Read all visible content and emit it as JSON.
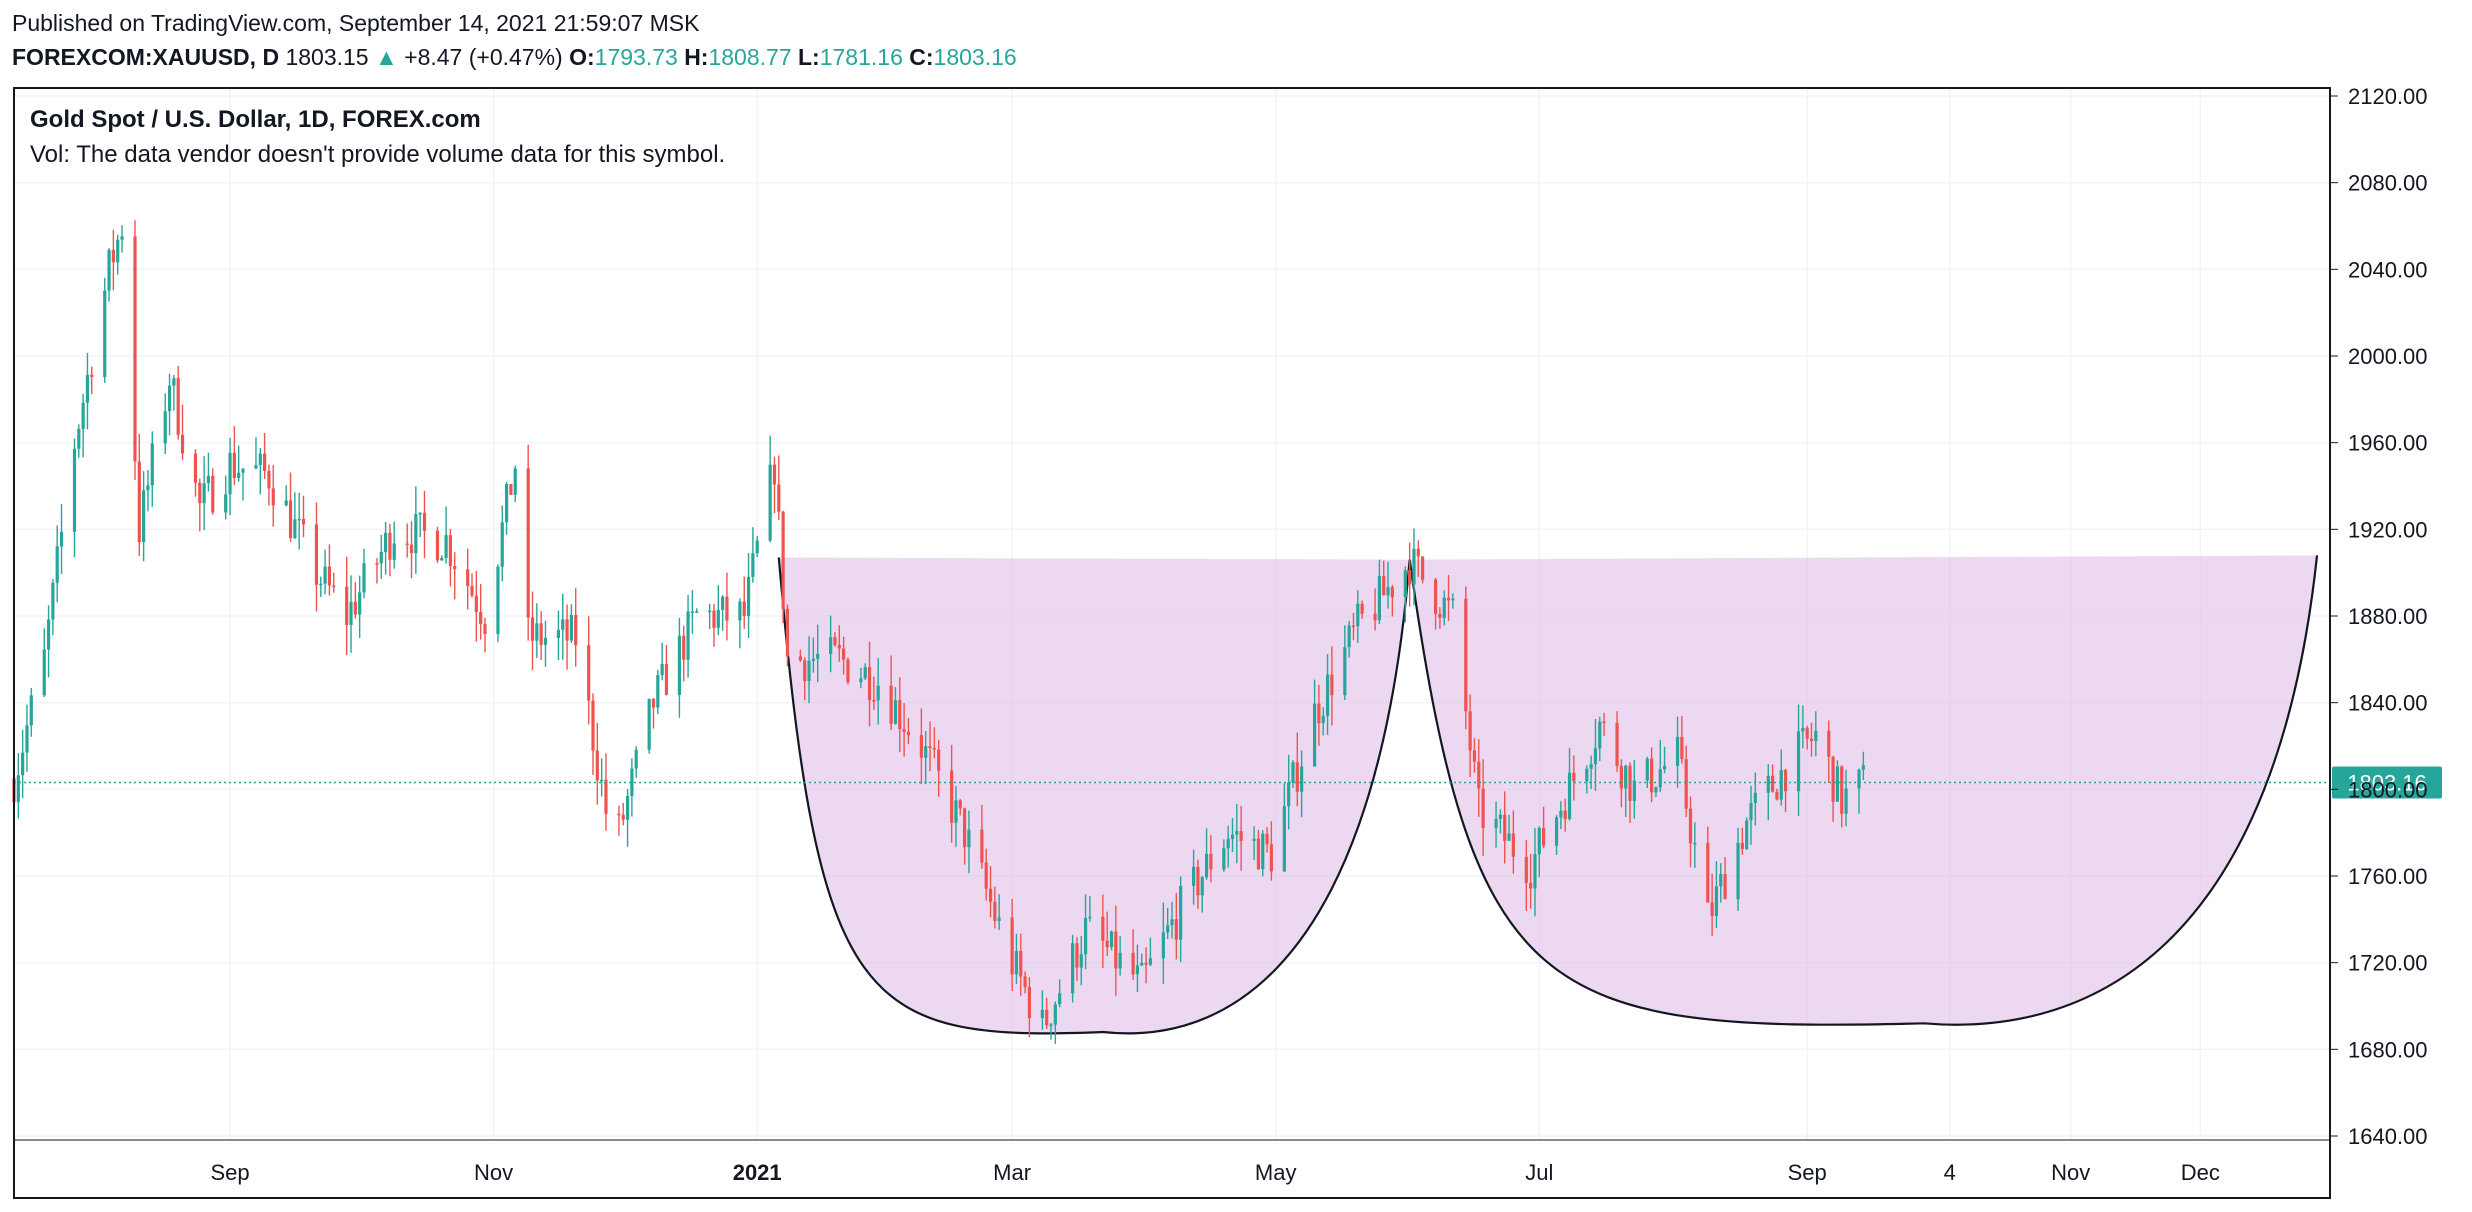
{
  "header": {
    "published": "Published on TradingView.com, September 14, 2021 21:59:07 MSK",
    "symbol": "FOREXCOM:XAUUSD, D",
    "last": "1803.15",
    "change_arrow": "▲",
    "change": "+8.47 (+0.47%)",
    "o_label": "O:",
    "o_value": "1793.73",
    "h_label": "H:",
    "h_value": "1808.77",
    "l_label": "L:",
    "l_value": "1781.16",
    "c_label": "C:",
    "c_value": "1803.16"
  },
  "legend": {
    "title": "Gold Spot / U.S. Dollar, 1D, FOREX.com",
    "volume_note": "Vol: The data vendor doesn't provide volume data for this symbol."
  },
  "colors": {
    "up": "#26a69a",
    "down": "#ef5350",
    "pattern_fill": "#e1bee7",
    "price_label_bg": "#26a69a"
  },
  "chart_data": {
    "type": "candlestick",
    "ylim": [
      1640,
      2120
    ],
    "y_ticks": [
      "1640.00",
      "1680.00",
      "1720.00",
      "1760.00",
      "1800.00",
      "1840.00",
      "1880.00",
      "1920.00",
      "1960.00",
      "2000.00",
      "2040.00",
      "2080.00",
      "2120.00"
    ],
    "x_ticks": [
      {
        "label": "Sep",
        "date": "2020-09-01"
      },
      {
        "label": "Nov",
        "date": "2020-11-01"
      },
      {
        "label": "2021",
        "date": "2021-01-01",
        "bold": true
      },
      {
        "label": "Mar",
        "date": "2021-03-01"
      },
      {
        "label": "May",
        "date": "2021-05-01"
      },
      {
        "label": "Jul",
        "date": "2021-07-01"
      },
      {
        "label": "Sep",
        "date": "2021-09-01"
      },
      {
        "label": "4",
        "date": "2021-10-04"
      },
      {
        "label": "Nov",
        "date": "2021-11-01"
      },
      {
        "label": "Dec",
        "date": "2021-12-01"
      }
    ],
    "x_range": [
      "2020-07-13",
      "2021-12-31"
    ],
    "current_price": "1803.16",
    "path": [
      [
        "2020-07-13",
        1805
      ],
      [
        "2020-07-20",
        1860
      ],
      [
        "2020-07-27",
        1960
      ],
      [
        "2020-08-04",
        2040
      ],
      [
        "2020-08-07",
        2060
      ],
      [
        "2020-08-11",
        1920
      ],
      [
        "2020-08-18",
        1990
      ],
      [
        "2020-08-25",
        1930
      ],
      [
        "2020-09-01",
        1950
      ],
      [
        "2020-09-10",
        1945
      ],
      [
        "2020-09-21",
        1900
      ],
      [
        "2020-09-28",
        1880
      ],
      [
        "2020-10-09",
        1920
      ],
      [
        "2020-10-21",
        1915
      ],
      [
        "2020-10-30",
        1880
      ],
      [
        "2020-11-06",
        1950
      ],
      [
        "2020-11-09",
        1870
      ],
      [
        "2020-11-20",
        1870
      ],
      [
        "2020-11-27",
        1790
      ],
      [
        "2020-11-30",
        1780
      ],
      [
        "2020-12-08",
        1840
      ],
      [
        "2020-12-18",
        1880
      ],
      [
        "2020-12-29",
        1880
      ],
      [
        "2021-01-05",
        1950
      ],
      [
        "2021-01-08",
        1860
      ],
      [
        "2021-01-20",
        1860
      ],
      [
        "2021-01-29",
        1850
      ],
      [
        "2021-02-08",
        1820
      ],
      [
        "2021-02-18",
        1780
      ],
      [
        "2021-03-01",
        1720
      ],
      [
        "2021-03-08",
        1690
      ],
      [
        "2021-03-18",
        1735
      ],
      [
        "2021-03-31",
        1710
      ],
      [
        "2021-04-09",
        1745
      ],
      [
        "2021-04-20",
        1780
      ],
      [
        "2021-04-30",
        1770
      ],
      [
        "2021-05-10",
        1835
      ],
      [
        "2021-05-20",
        1875
      ],
      [
        "2021-06-01",
        1905
      ],
      [
        "2021-06-11",
        1880
      ],
      [
        "2021-06-17",
        1790
      ],
      [
        "2021-06-29",
        1765
      ],
      [
        "2021-07-09",
        1805
      ],
      [
        "2021-07-15",
        1830
      ],
      [
        "2021-07-23",
        1800
      ],
      [
        "2021-08-02",
        1815
      ],
      [
        "2021-08-09",
        1740
      ],
      [
        "2021-08-18",
        1785
      ],
      [
        "2021-08-27",
        1810
      ],
      [
        "2021-09-03",
        1825
      ],
      [
        "2021-09-09",
        1795
      ],
      [
        "2021-09-14",
        1803
      ]
    ],
    "cup_handle": {
      "rim_left": [
        "2021-01-06",
        1907
      ],
      "rim_mid": [
        "2021-06-01",
        1906
      ],
      "rim_right": [
        "2021-12-28",
        1908
      ],
      "left_cup_bottom": [
        "2021-03-22",
        1688
      ],
      "right_cup_bottom": [
        "2021-09-28",
        1692
      ]
    }
  }
}
